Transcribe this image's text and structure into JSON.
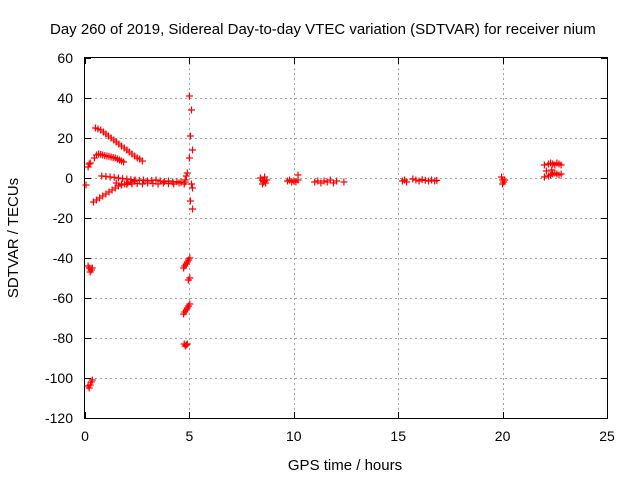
{
  "chart_data": {
    "type": "scatter",
    "title": "Day 260 of 2019, Sidereal Day-to-day VTEC variation (SDTVAR) for receiver nium",
    "xlabel": "GPS time / hours",
    "ylabel": "SDTVAR / TECUs",
    "xlim": [
      0,
      25
    ],
    "ylim": [
      -120,
      60
    ],
    "xticks": [
      0,
      5,
      10,
      15,
      20,
      25
    ],
    "xtick_labels": [
      "0",
      "5",
      "10",
      "15",
      "20",
      "25"
    ],
    "yticks": [
      -120,
      -100,
      -80,
      -60,
      -40,
      -20,
      0,
      20,
      40,
      60
    ],
    "ytick_labels": [
      "-120",
      "-100",
      "-80",
      "-60",
      "-40",
      "-20",
      "0",
      "20",
      "40",
      "60"
    ],
    "grid": true,
    "marker": "plus",
    "color": "#ff0000",
    "series": [
      {
        "name": "SDTVAR",
        "segments": [
          {
            "x": [
              0.5,
              0.62,
              0.75,
              0.88,
              1.0,
              1.12,
              1.25,
              1.38,
              1.5,
              1.62,
              1.75,
              1.88,
              2.0,
              2.12,
              2.25,
              2.38,
              2.5,
              2.62,
              2.75
            ],
            "y": [
              25.0,
              24.5,
              24.0,
              23.0,
              22.0,
              21.0,
              20.0,
              19.0,
              18.0,
              17.0,
              16.0,
              15.0,
              14.0,
              13.0,
              12.0,
              11.0,
              10.0,
              9.5,
              8.5
            ]
          },
          {
            "x": [
              0.45,
              0.55,
              0.65,
              0.75,
              0.85,
              0.95,
              1.05,
              1.15,
              1.25,
              1.35,
              1.45,
              1.55,
              1.65,
              1.75,
              1.85
            ],
            "y": [
              10.0,
              11.5,
              12.0,
              11.8,
              11.5,
              11.2,
              11.0,
              10.8,
              10.5,
              10.2,
              10.0,
              9.5,
              9.0,
              8.5,
              8.0
            ]
          },
          {
            "x": [
              0.4,
              0.55,
              0.7,
              0.85,
              1.0,
              1.15,
              1.3,
              1.45,
              1.6,
              1.75,
              1.9,
              2.05,
              2.2,
              2.35
            ],
            "y": [
              -12.0,
              -11.0,
              -10.0,
              -9.0,
              -8.0,
              -7.0,
              -6.0,
              -5.0,
              -4.0,
              -3.5,
              -3.0,
              -2.5,
              -2.0,
              -1.5
            ]
          },
          {
            "x": [
              0.8,
              1.0,
              1.2,
              1.4,
              1.6,
              1.8,
              2.0,
              2.2,
              2.4,
              2.6,
              2.8,
              3.0,
              3.2,
              3.4,
              3.6,
              3.8,
              4.0,
              4.2,
              4.4,
              4.6,
              4.8
            ],
            "y": [
              1.0,
              0.8,
              0.5,
              0.3,
              0.0,
              -0.3,
              -0.5,
              -0.8,
              -1.0,
              -1.2,
              -1.0,
              -1.5,
              -1.2,
              -1.0,
              -1.5,
              -1.8,
              -1.5,
              -2.0,
              -1.8,
              -2.2,
              -2.0
            ]
          },
          {
            "x": [
              1.5,
              1.75,
              2.0,
              2.25,
              2.5,
              2.75,
              3.0,
              3.25,
              3.5,
              3.75,
              4.0,
              4.25,
              4.5,
              4.75
            ],
            "y": [
              -2.5,
              -3.0,
              -3.2,
              -3.0,
              -2.8,
              -3.0,
              -2.5,
              -2.8,
              -3.0,
              -2.5,
              -2.8,
              -3.0,
              -2.5,
              -3.0
            ]
          },
          {
            "x": [
              0.05,
              0.15,
              0.2,
              0.25
            ],
            "y": [
              -3.5,
              5.5,
              7.0,
              7.5
            ]
          },
          {
            "x": [
              0.15,
              0.2,
              0.25,
              0.3,
              0.35
            ],
            "y": [
              -44.0,
              -45.0,
              -47.0,
              -46.0,
              -45.0
            ]
          },
          {
            "x": [
              0.15,
              0.2,
              0.25,
              0.3,
              0.35
            ],
            "y": [
              -104.0,
              -105.0,
              -103.5,
              -102.0,
              -101.0
            ]
          },
          {
            "x": [
              4.72,
              4.78,
              4.84,
              4.9,
              4.96,
              5.02
            ],
            "y": [
              -45.0,
              -44.0,
              -43.0,
              -42.0,
              -41.0,
              -40.0
            ]
          },
          {
            "x": [
              4.72,
              4.78,
              4.84,
              4.9,
              4.96,
              5.02
            ],
            "y": [
              -68.0,
              -67.0,
              -66.0,
              -65.0,
              -64.0,
              -63.0
            ]
          },
          {
            "x": [
              4.95,
              5.02
            ],
            "y": [
              -51.0,
              -50.0
            ]
          },
          {
            "x": [
              4.75,
              4.8,
              4.85,
              4.9
            ],
            "y": [
              -83.0,
              -84.0,
              -83.5,
              -83.0
            ]
          },
          {
            "x": [
              4.8,
              4.85,
              4.9
            ],
            "y": [
              -1.0,
              1.0,
              2.5
            ]
          },
          {
            "x": [
              5.0,
              5.1,
              5.05,
              5.15,
              5.0,
              5.1,
              5.15,
              5.05,
              5.15
            ],
            "y": [
              41.0,
              34.0,
              21.0,
              14.0,
              10.0,
              -3.0,
              -5.0,
              -11.5,
              -15.5
            ]
          },
          {
            "x": [
              8.4,
              8.5,
              8.55,
              8.6,
              8.65,
              8.7,
              8.5,
              8.6
            ],
            "y": [
              0.0,
              -1.0,
              -2.0,
              -1.5,
              -2.5,
              -1.0,
              -3.0,
              0.5
            ]
          },
          {
            "x": [
              9.7,
              9.8,
              9.9,
              10.0,
              10.1,
              10.2,
              10.2
            ],
            "y": [
              -1.5,
              -1.0,
              -2.0,
              -1.5,
              -2.0,
              -1.0,
              1.5
            ]
          },
          {
            "x": [
              11.0,
              11.15,
              11.3,
              11.45,
              11.6,
              11.75,
              11.9,
              12.05,
              12.4
            ],
            "y": [
              -2.0,
              -1.5,
              -2.5,
              -1.5,
              -2.0,
              -1.0,
              -2.5,
              -1.5,
              -2.0
            ]
          },
          {
            "x": [
              15.2,
              15.3,
              15.4
            ],
            "y": [
              -1.5,
              -1.0,
              -2.0
            ]
          },
          {
            "x": [
              15.7,
              15.85,
              16.0,
              16.15,
              16.3,
              16.45,
              16.6,
              16.75,
              16.85
            ],
            "y": [
              -0.5,
              -1.0,
              -1.5,
              -0.8,
              -1.2,
              -1.5,
              -1.0,
              -1.5,
              -1.2
            ]
          },
          {
            "x": [
              19.95,
              20.0,
              20.05,
              20.1,
              20.0
            ],
            "y": [
              0.5,
              -1.0,
              -2.0,
              -1.0,
              -3.0
            ]
          },
          {
            "x": [
              22.0,
              22.2,
              22.3,
              22.4,
              22.5,
              22.6,
              22.7,
              22.8
            ],
            "y": [
              6.5,
              7.0,
              7.5,
              7.0,
              6.5,
              7.5,
              7.0,
              6.5
            ]
          },
          {
            "x": [
              22.0,
              22.2,
              22.3,
              22.4,
              22.5,
              22.6,
              22.7,
              22.8,
              22.1,
              22.35
            ],
            "y": [
              0.5,
              1.0,
              1.5,
              2.0,
              2.5,
              2.0,
              1.5,
              2.0,
              3.5,
              4.0
            ]
          }
        ]
      }
    ]
  }
}
